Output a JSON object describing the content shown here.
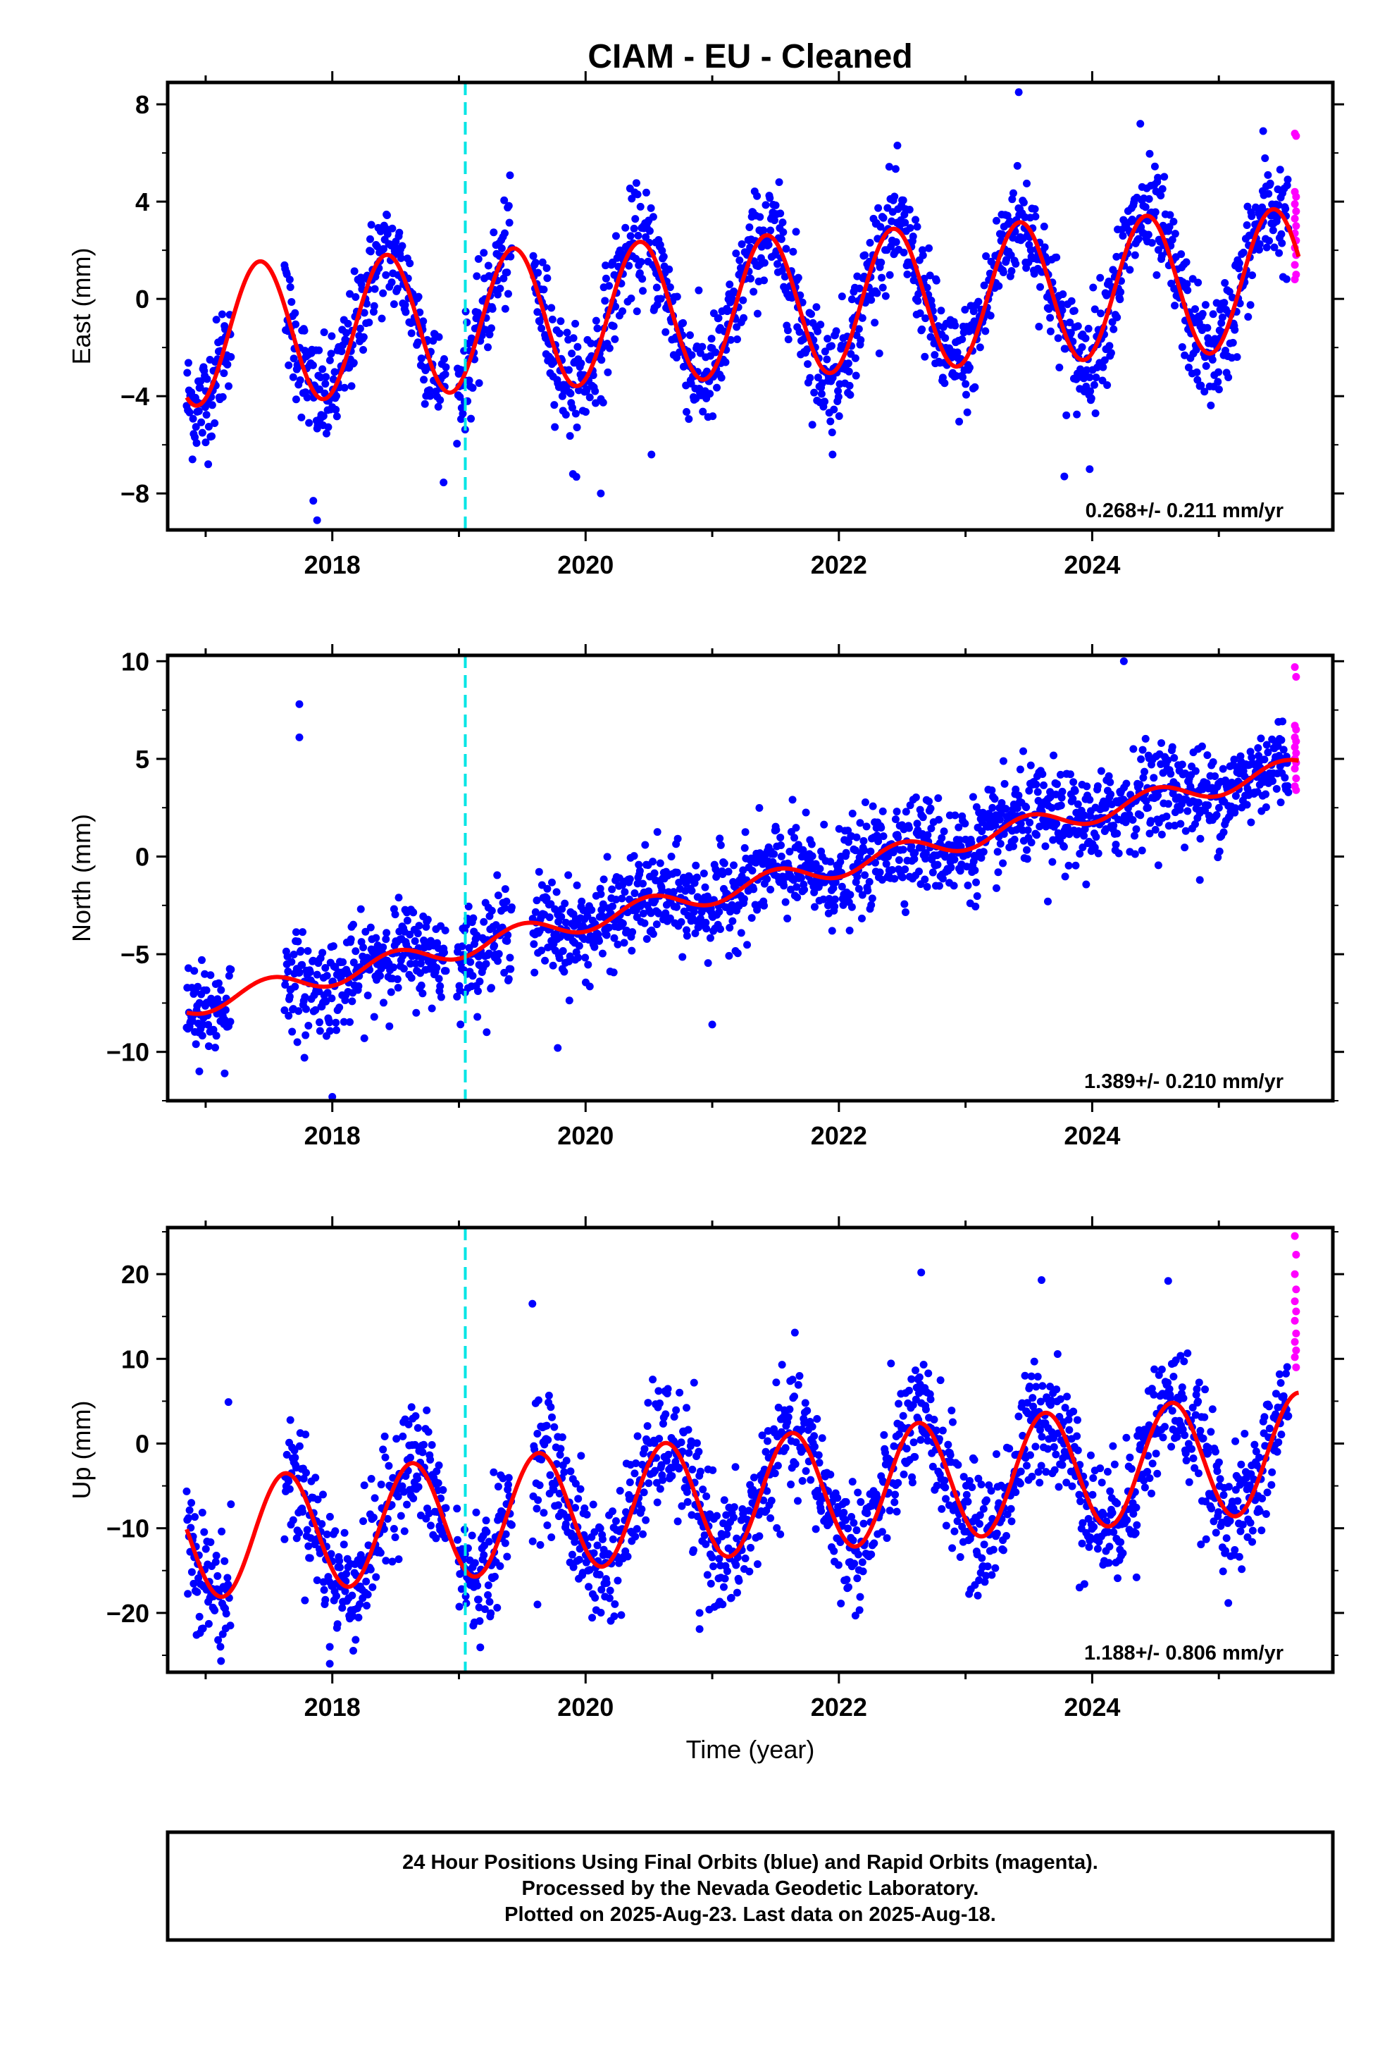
{
  "chart_data": {
    "type": "scatter",
    "title": "CIAM  - EU - Cleaned",
    "xlabel": "Time (year)",
    "x_ticks": [
      2018,
      2020,
      2022,
      2024
    ],
    "xlim": [
      2016.7,
      2025.9
    ],
    "reference_line_x": 2019.05,
    "data_start": 2016.85,
    "data_end": 2025.63,
    "rapid_start": 2025.55,
    "colors": {
      "final_orbits": "#0000ff",
      "rapid_orbits": "#ff00ff",
      "model": "#ff0000",
      "reference_line": "#00e5e5",
      "frame": "#000000"
    },
    "panels": [
      {
        "name": "East",
        "ylabel": "East (mm)",
        "ylim": [
          -9.5,
          8.9
        ],
        "y_ticks": [
          8,
          4,
          0,
          -4,
          -8
        ],
        "rate_label": "0.268+/- 0.211 mm/yr",
        "model": {
          "offset": -0.4,
          "trend": 0.268,
          "amplitude": 2.9,
          "phase": 2017.43
        },
        "scatter_sigma": 1.1,
        "rapid_values": [
          6.8,
          6.7,
          4.4,
          4.2,
          3.9,
          3.6,
          3.3,
          3.0,
          2.7,
          2.4,
          2.1,
          1.8,
          1.4,
          1.0,
          0.8
        ],
        "outliers": [
          [
            2023.42,
            8.5
          ],
          [
            2024.38,
            7.2
          ],
          [
            2025.35,
            6.9
          ],
          [
            2017.88,
            -9.1
          ],
          [
            2017.85,
            -8.3
          ],
          [
            2023.78,
            -7.3
          ],
          [
            2023.98,
            -7.0
          ],
          [
            2020.12,
            -8.0
          ],
          [
            2019.9,
            -7.2
          ],
          [
            2020.52,
            -6.4
          ],
          [
            2021.95,
            -6.4
          ],
          [
            2017.0,
            -5.9
          ]
        ]
      },
      {
        "name": "North",
        "ylabel": "North (mm)",
        "ylim": [
          -12.5,
          10.3
        ],
        "y_ticks": [
          10,
          5,
          0,
          -5,
          -10
        ],
        "rate_label": "1.389+/- 0.210 mm/yr",
        "model": {
          "offset": -1.9,
          "trend": 1.389,
          "amplitude": 0.55,
          "phase": 2017.5
        },
        "scatter_sigma": 1.2,
        "rapid_values": [
          9.7,
          9.2,
          6.7,
          6.5,
          6.1,
          5.9,
          5.6,
          5.3,
          5.0,
          4.8,
          4.5,
          4.0,
          3.6,
          3.4
        ],
        "outliers": [
          [
            2017.74,
            7.8
          ],
          [
            2017.74,
            6.1
          ],
          [
            2024.25,
            10.0
          ],
          [
            2019.78,
            -9.8
          ],
          [
            2018.0,
            -12.3
          ],
          [
            2016.95,
            -11.0
          ],
          [
            2017.15,
            -11.1
          ],
          [
            2017.78,
            -10.3
          ],
          [
            2021.0,
            -8.6
          ],
          [
            2024.85,
            -1.2
          ],
          [
            2023.65,
            -2.3
          ]
        ]
      },
      {
        "name": "Up",
        "ylabel": "Up (mm)",
        "ylim": [
          -27,
          25.5
        ],
        "y_ticks": [
          20,
          10,
          0,
          -10,
          -20
        ],
        "rate_label": "1.188+/- 0.806 mm/yr",
        "model": {
          "offset": -6.5,
          "trend": 1.188,
          "amplitude": 7.0,
          "phase": 2017.63
        },
        "scatter_sigma": 3.6,
        "rapid_values": [
          24.5,
          22.3,
          20.0,
          18.2,
          16.8,
          15.6,
          14.5,
          13.0,
          12.0,
          11.0,
          10.2,
          9.0
        ],
        "outliers": [
          [
            2017.98,
            -26.0
          ],
          [
            2017.98,
            -24.0
          ],
          [
            2020.9,
            -21.9
          ],
          [
            2020.9,
            -20.0
          ],
          [
            2019.62,
            -19.0
          ],
          [
            2022.65,
            20.2
          ],
          [
            2023.6,
            19.3
          ],
          [
            2024.6,
            19.2
          ],
          [
            2023.9,
            -17.0
          ],
          [
            2024.35,
            -15.8
          ],
          [
            2019.58,
            16.5
          ],
          [
            2017.18,
            4.9
          ]
        ]
      }
    ]
  },
  "footer": {
    "line1": "24 Hour Positions Using Final Orbits (blue) and Rapid Orbits (magenta).",
    "line2": "Processed by the Nevada Geodetic Laboratory.",
    "line3": "Plotted on 2025-Aug-23. Last data on 2025-Aug-18."
  }
}
